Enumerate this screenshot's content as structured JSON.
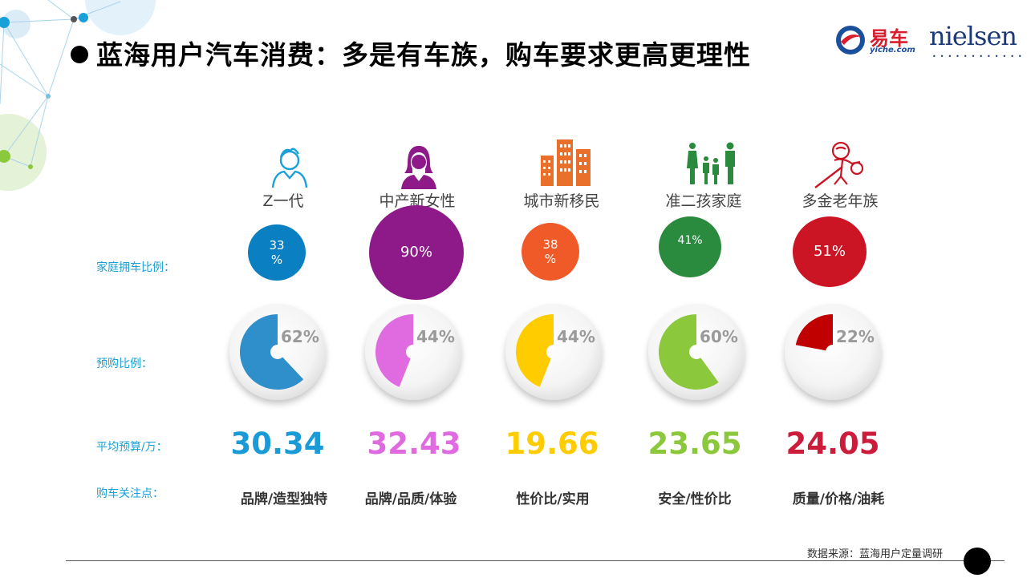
{
  "title": "蓝海用户汽车消费：多是有车族，购车要求更高更理性",
  "logos": {
    "yiche_text": "易车",
    "yiche_sub": "yiche.com",
    "nielsen": "nielsen"
  },
  "row_labels": {
    "ownership": "家庭拥车比例：",
    "purchase": "预购比例：",
    "budget": "平均预算/万：",
    "concern": "购车关注点："
  },
  "chart_data": {
    "type": "table",
    "categories": [
      "Z一代",
      "中产新女性",
      "城市新移民",
      "准二孩家庭",
      "多金老年族"
    ],
    "ownership_pct": [
      33,
      90,
      38,
      41,
      51
    ],
    "ownership_labels": [
      "33\n%",
      "90%",
      "38\n%",
      "41%",
      "51%"
    ],
    "purchase_pct": [
      62,
      44,
      44,
      60,
      22
    ],
    "purchase_labels": [
      "62%",
      "44%",
      "44%",
      "60%",
      "22%"
    ],
    "budget_wan": [
      30.34,
      32.43,
      19.66,
      23.65,
      24.05
    ],
    "budget_labels": [
      "30.34",
      "32.43",
      "19.66",
      "23.65",
      "24.05"
    ],
    "concerns": [
      "品牌/造型独特",
      "品牌/品质/体验",
      "性价比/实用",
      "安全/性价比",
      "质量/价格/油耗"
    ],
    "colors": {
      "ownership": [
        "#0a7fc2",
        "#8e1a8a",
        "#f05a28",
        "#2a8a3e",
        "#cc1524"
      ],
      "purchase": [
        "#2e8fca",
        "#e06ae0",
        "#ffcc00",
        "#8cc83c",
        "#c00000"
      ],
      "budget": [
        "#1a9ad6",
        "#e06ae0",
        "#ffcc00",
        "#8cc83c",
        "#cc1c3c"
      ]
    },
    "icons": [
      "boy-icon",
      "woman-icon",
      "buildings-icon",
      "family-icon",
      "elder-icon"
    ]
  },
  "source": "数据来源：蓝海用户定量调研"
}
